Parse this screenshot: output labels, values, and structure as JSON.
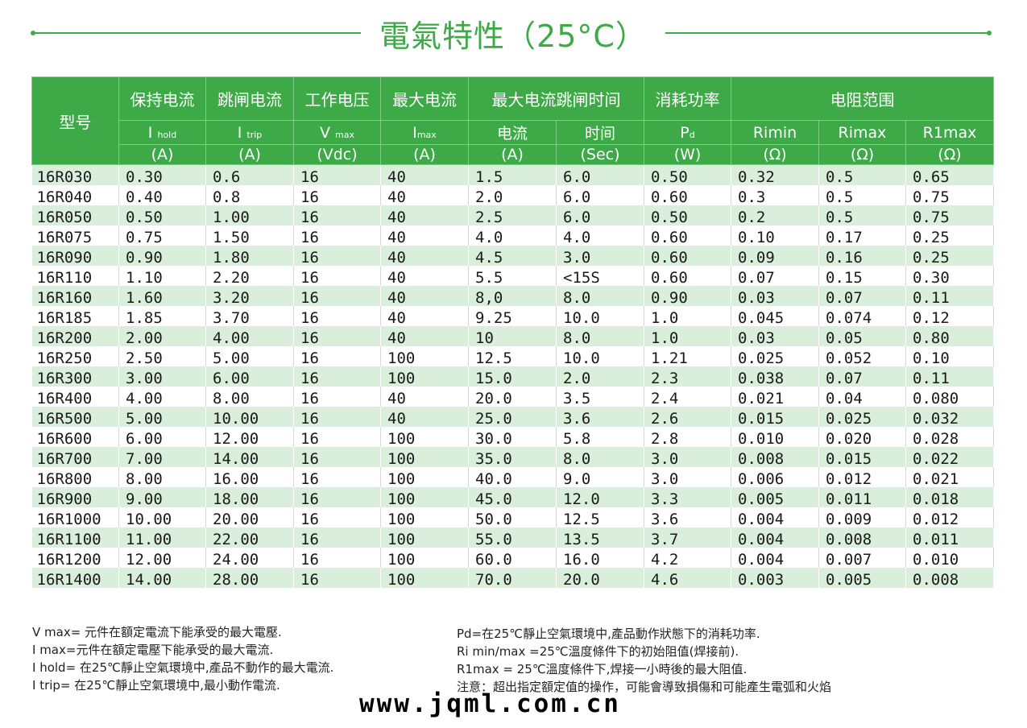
{
  "title": "電氣特性（25°C）",
  "colors": {
    "accent": "#3daa47",
    "row_alt": "#d9efdc"
  },
  "header": {
    "model": "型号",
    "hold": {
      "name": "保持电流",
      "sym": "I",
      "sub": "hold",
      "unit": "(A)"
    },
    "trip": {
      "name": "跳闸电流",
      "sym": "I",
      "sub": "trip",
      "unit": "(A)"
    },
    "vmax": {
      "name": "工作电压",
      "sym": "V",
      "sub": "max",
      "unit": "(Vdc)"
    },
    "imax": {
      "name": "最大电流",
      "sym": "I",
      "sub": "max",
      "unit": "(A)"
    },
    "trip_time": {
      "name": "最大电流跳闸时间",
      "current": {
        "name": "电流",
        "unit": "(A)"
      },
      "time": {
        "name": "时间",
        "unit": "(Sec)"
      }
    },
    "pd": {
      "name": "消耗功率",
      "sym": "P",
      "sub": "d",
      "unit": "(W)"
    },
    "resistance": {
      "name": "电阻范围",
      "rimin": {
        "name": "Rimin",
        "unit": "(Ω)"
      },
      "rimax": {
        "name": "Rimax",
        "unit": "(Ω)"
      },
      "r1max": {
        "name": "R1max",
        "unit": "(Ω)"
      }
    }
  },
  "rows": [
    [
      "16R030",
      "0.30",
      "0.6",
      "16",
      "40",
      "1.5",
      "6.0",
      "0.50",
      "0.32",
      "0.5",
      "0.65"
    ],
    [
      "16R040",
      "0.40",
      "0.8",
      "16",
      "40",
      "2.0",
      "6.0",
      "0.60",
      "0.3",
      "0.5",
      "0.75"
    ],
    [
      "16R050",
      "0.50",
      "1.00",
      "16",
      "40",
      "2.5",
      "6.0",
      "0.50",
      "0.2",
      "0.5",
      "0.75"
    ],
    [
      "16R075",
      "0.75",
      "1.50",
      "16",
      "40",
      "4.0",
      "4.0",
      "0.60",
      "0.10",
      "0.17",
      "0.25"
    ],
    [
      "16R090",
      "0.90",
      "1.80",
      "16",
      "40",
      "4.5",
      "3.0",
      "0.60",
      "0.09",
      "0.16",
      "0.25"
    ],
    [
      "16R110",
      "1.10",
      "2.20",
      "16",
      "40",
      "5.5",
      "<15S",
      "0.60",
      "0.07",
      "0.15",
      "0.30"
    ],
    [
      "16R160",
      "1.60",
      "3.20",
      "16",
      "40",
      "8,0",
      "8.0",
      "0.90",
      "0.03",
      "0.07",
      "0.11"
    ],
    [
      "16R185",
      "1.85",
      "3.70",
      "16",
      "40",
      "9.25",
      "10.0",
      "1.0",
      "0.045",
      "0.074",
      "0.12"
    ],
    [
      "16R200",
      "2.00",
      "4.00",
      "16",
      "40",
      "10",
      "8.0",
      "1.0",
      "0.03",
      "0.05",
      "0.80"
    ],
    [
      "16R250",
      "2.50",
      "5.00",
      "16",
      "100",
      "12.5",
      "10.0",
      "1.21",
      "0.025",
      "0.052",
      "0.10"
    ],
    [
      "16R300",
      "3.00",
      "6.00",
      "16",
      "100",
      "15.0",
      "2.0",
      "2.3",
      "0.038",
      "0.07",
      "0.11"
    ],
    [
      "16R400",
      "4.00",
      "8.00",
      "16",
      "40",
      "20.0",
      "3.5",
      "2.4",
      "0.021",
      "0.04",
      "0.080"
    ],
    [
      "16R500",
      "5.00",
      "10.00",
      "16",
      "40",
      "25.0",
      "3.6",
      "2.6",
      "0.015",
      "0.025",
      "0.032"
    ],
    [
      "16R600",
      "6.00",
      "12.00",
      "16",
      "100",
      "30.0",
      "5.8",
      "2.8",
      "0.010",
      "0.020",
      "0.028"
    ],
    [
      "16R700",
      "7.00",
      "14.00",
      "16",
      "100",
      "35.0",
      "8.0",
      "3.0",
      "0.008",
      "0.015",
      "0.022"
    ],
    [
      "16R800",
      "8.00",
      "16.00",
      "16",
      "100",
      "40.0",
      "9.0",
      "3.0",
      "0.006",
      "0.012",
      "0.021"
    ],
    [
      "16R900",
      "9.00",
      "18.00",
      "16",
      "100",
      "45.0",
      "12.0",
      "3.3",
      "0.005",
      "0.011",
      "0.018"
    ],
    [
      "16R1000",
      "10.00",
      "20.00",
      "16",
      "100",
      "50.0",
      "12.5",
      "3.6",
      "0.004",
      "0.009",
      "0.012"
    ],
    [
      "16R1100",
      "11.00",
      "22.00",
      "16",
      "100",
      "55.0",
      "13.5",
      "3.7",
      "0.004",
      "0.008",
      "0.011"
    ],
    [
      "16R1200",
      "12.00",
      "24.00",
      "16",
      "100",
      "60.0",
      "16.0",
      "4.2",
      "0.004",
      "0.007",
      "0.010"
    ],
    [
      "16R1400",
      "14.00",
      "28.00",
      "16",
      "100",
      "70.0",
      "20.0",
      "4.6",
      "0.003",
      "0.005",
      "0.008"
    ]
  ],
  "notes_left": [
    "V max= 元件在額定電流下能承受的最大電壓.",
    "I max=元件在額定電壓下能承受的最大電流.",
    "I hold= 在25℃靜止空氣環境中,產品不動作的最大電流.",
    "I trip= 在25℃靜止空氣環境中,最小動作電流."
  ],
  "notes_right": [
    "Pd=在25℃靜止空氣環境中,產品動作狀態下的消耗功率.",
    "Ri min/max  =25℃溫度條件下的初始阻值(焊接前).",
    "R1max  = 25℃溫度條件下,焊接一小時後的最大阻值.",
    "注意：超出指定額定值的操作，可能會導致損傷和可能產生電弧和火焰"
  ],
  "watermark": "www.jqml.com.cn"
}
